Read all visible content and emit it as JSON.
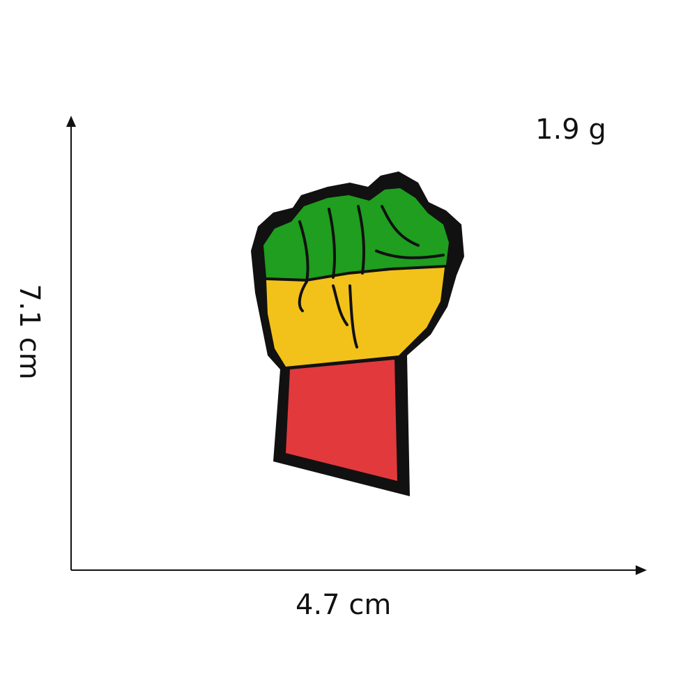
{
  "dimensions": {
    "weight": "1.9 g",
    "width": "4.7 cm",
    "height": "7.1 cm"
  },
  "patch": {
    "colors": {
      "outline": "#111111",
      "green": "#1f9e1f",
      "yellow": "#f2c21a",
      "red": "#e2393c"
    }
  }
}
